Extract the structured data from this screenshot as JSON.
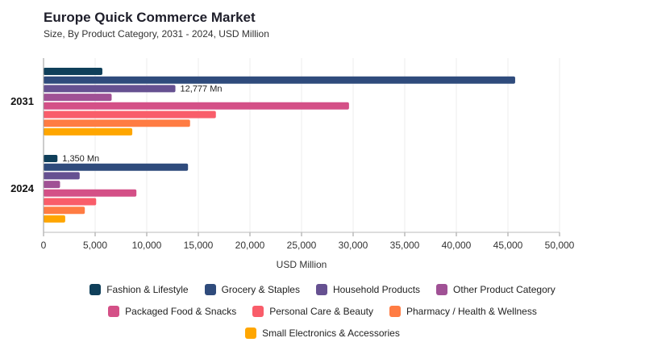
{
  "title": "Europe Quick Commerce Market",
  "subtitle": "Size, By Product Category, 2031 - 2024, USD Million",
  "chart_data": {
    "type": "bar",
    "orientation": "horizontal",
    "title": "Europe Quick Commerce Market",
    "subtitle": "Size, By Product Category, 2031 - 2024, USD Million",
    "categories": [
      "2031",
      "2024"
    ],
    "xlabel": "USD Million",
    "ylabel": "",
    "xlim": [
      0,
      50000
    ],
    "xticks": [
      0,
      5000,
      10000,
      15000,
      20000,
      25000,
      30000,
      35000,
      40000,
      45000,
      50000
    ],
    "xtick_labels": [
      "0",
      "5,000",
      "10,000",
      "15,000",
      "20,000",
      "25,000",
      "30,000",
      "35,000",
      "40,000",
      "45,000",
      "50,000"
    ],
    "grid": true,
    "legend_position": "bottom",
    "series": [
      {
        "name": "Fashion & Lifestyle",
        "color": "#0f3f5a",
        "values": [
          5700,
          1350
        ]
      },
      {
        "name": "Grocery & Staples",
        "color": "#2f4b7c",
        "values": [
          45700,
          14000
        ]
      },
      {
        "name": "Household Products",
        "color": "#665191",
        "values": [
          12777,
          3500
        ]
      },
      {
        "name": "Other Product Category",
        "color": "#a05195",
        "values": [
          6600,
          1600
        ]
      },
      {
        "name": "Packaged Food & Snacks",
        "color": "#d45087",
        "values": [
          29600,
          9000
        ]
      },
      {
        "name": "Personal Care & Beauty",
        "color": "#f95d6a",
        "values": [
          16700,
          5100
        ]
      },
      {
        "name": "Pharmacy / Health & Wellness",
        "color": "#ff7c43",
        "values": [
          14200,
          4000
        ]
      },
      {
        "name": "Small Electronics & Accessories",
        "color": "#ffa600",
        "values": [
          8600,
          2100
        ]
      }
    ],
    "annotations": [
      {
        "series": "Household Products",
        "category": "2031",
        "text": "12,777 Mn"
      },
      {
        "series": "Fashion & Lifestyle",
        "category": "2024",
        "text": "1,350 Mn"
      }
    ]
  }
}
